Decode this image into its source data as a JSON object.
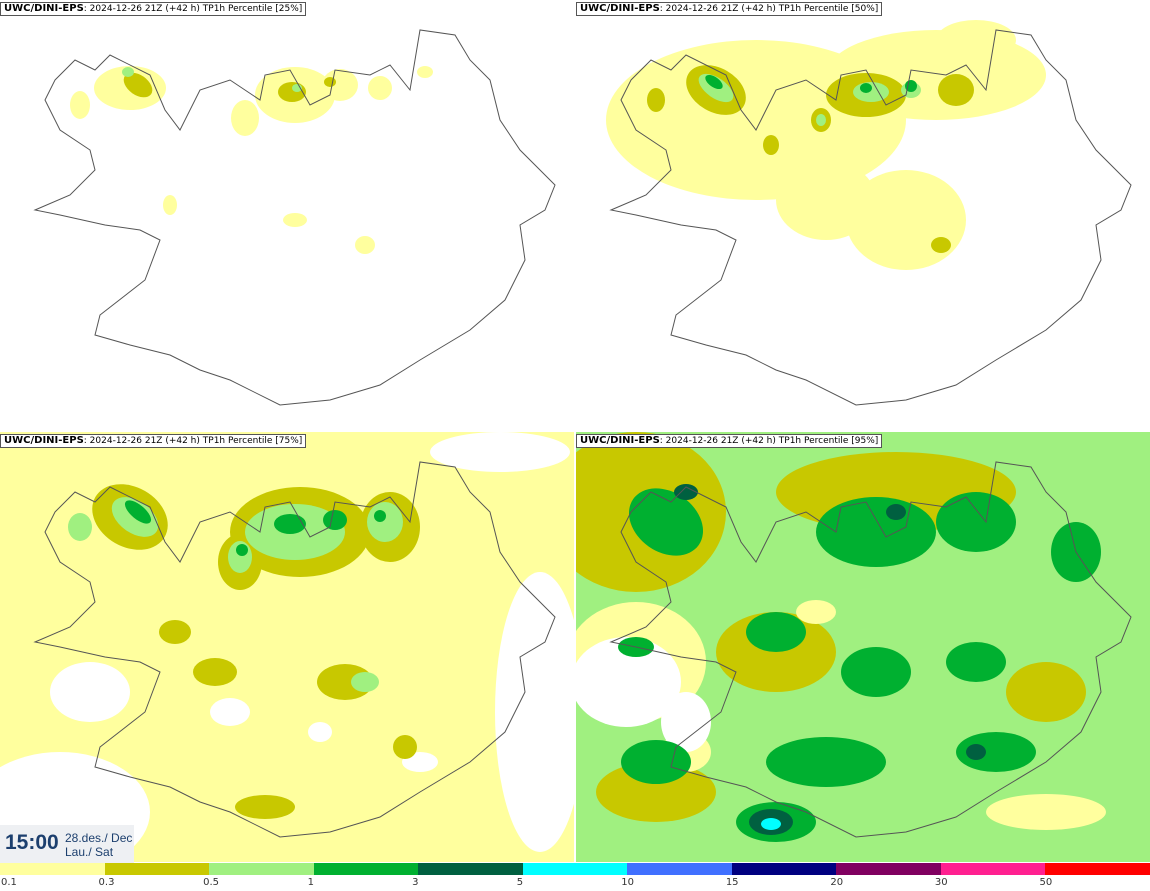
{
  "panels": [
    {
      "model": "UWC/DINI-EPS",
      "run": "2024-12-26 21Z (+42 h)",
      "product": "TP1h Percentile [25%]"
    },
    {
      "model": "UWC/DINI-EPS",
      "run": "2024-12-26 21Z (+42 h)",
      "product": "TP1h Percentile [50%]"
    },
    {
      "model": "UWC/DINI-EPS",
      "run": "2024-12-26 21Z (+42 h)",
      "product": "TP1h Percentile [75%]"
    },
    {
      "model": "UWC/DINI-EPS",
      "run": "2024-12-26 21Z (+42 h)",
      "product": "TP1h Percentile [95%]"
    }
  ],
  "valid_time": {
    "time": "15:00",
    "date_line1": "28.des./ Dec",
    "date_line2": "Lau./ Sat"
  },
  "legend": {
    "ticks": [
      "0.1",
      "0.3",
      "0.5",
      "1",
      "3",
      "5",
      "10",
      "15",
      "20",
      "30",
      "50"
    ],
    "colors": [
      "#ffff9e",
      "#c8c800",
      "#a0f080",
      "#00b030",
      "#006040",
      "#00ffff",
      "#4070ff",
      "#000080",
      "#800060",
      "#ff2090",
      "#ff0000"
    ]
  },
  "palette": {
    "light": "#ffff9e",
    "olive": "#c8c800",
    "lightgreen": "#a0f080",
    "green": "#00b030",
    "darkgreen": "#006040",
    "cyan": "#00ffff"
  }
}
